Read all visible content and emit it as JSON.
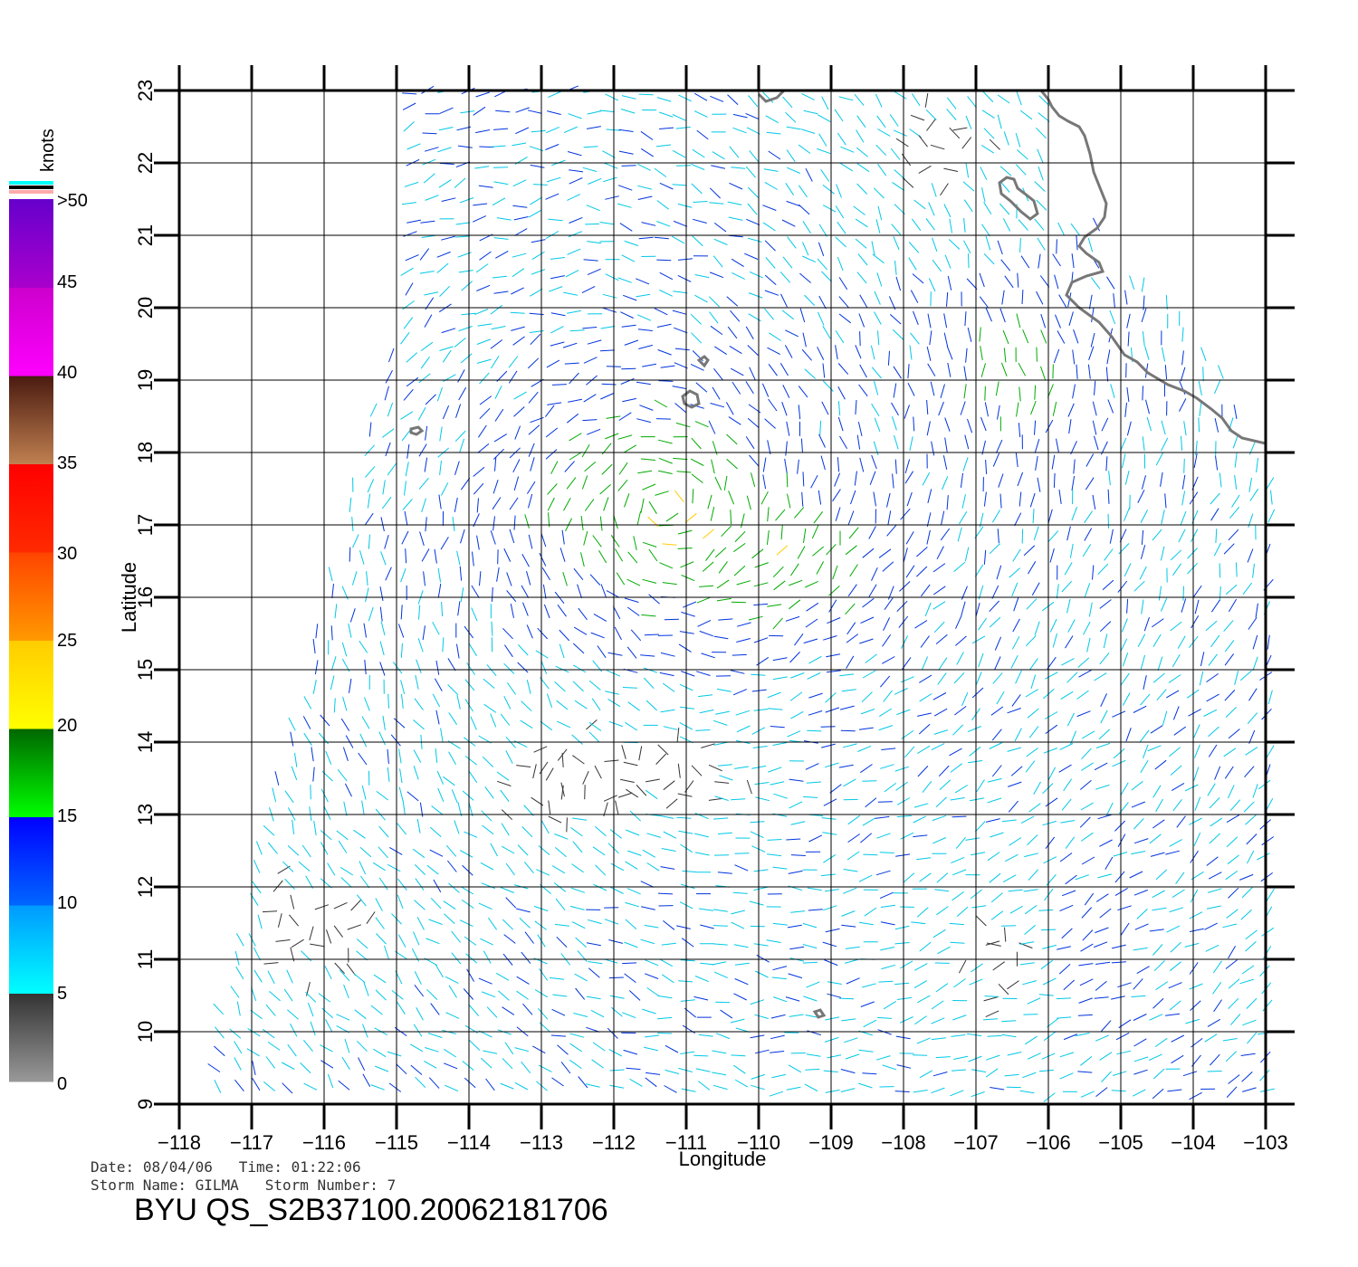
{
  "map": {
    "xlabel": "Longitude",
    "ylabel": "Latitude",
    "lon_ticks": [
      "−118",
      "−117",
      "−116",
      "−115",
      "−114",
      "−113",
      "−112",
      "−111",
      "−110",
      "−109",
      "−108",
      "−107",
      "−106",
      "−105",
      "−104",
      "−103"
    ],
    "lat_ticks": [
      "9",
      "10",
      "11",
      "12",
      "13",
      "14",
      "15",
      "16",
      "17",
      "18",
      "19",
      "20",
      "21",
      "22",
      "23"
    ],
    "lon_range": [
      -118,
      -103
    ],
    "lat_range": [
      9,
      23
    ],
    "grid": true
  },
  "legend": {
    "unit": "knots",
    "labels": [
      ">50",
      "45",
      "40",
      "35",
      "30",
      "25",
      "20",
      "15",
      "10",
      "5",
      "0"
    ],
    "bands": [
      {
        "from": 0,
        "to": 5,
        "top": "#333333",
        "bottom": "#999999"
      },
      {
        "from": 5,
        "to": 10,
        "top": "#0099ff",
        "bottom": "#00ffff"
      },
      {
        "from": 10,
        "to": 15,
        "top": "#0000ff",
        "bottom": "#0066ff"
      },
      {
        "from": 15,
        "to": 20,
        "top": "#006600",
        "bottom": "#00ff00"
      },
      {
        "from": 20,
        "to": 25,
        "top": "#ffcc00",
        "bottom": "#ffff00"
      },
      {
        "from": 25,
        "to": 30,
        "top": "#ff4400",
        "bottom": "#ff9900"
      },
      {
        "from": 30,
        "to": 35,
        "top": "#ff0000",
        "bottom": "#ff2a00"
      },
      {
        "from": 35,
        "to": 40,
        "top": "#4a1a10",
        "bottom": "#c08050"
      },
      {
        "from": 40,
        "to": 45,
        "top": "#cc00cc",
        "bottom": "#ff00ff"
      },
      {
        "from": 45,
        "to": 50,
        "top": "#6600cc",
        "bottom": "#aa00cc"
      }
    ],
    "cap_colors": [
      "#00ffff",
      "#000000",
      "#ffaaaa"
    ]
  },
  "colors": {
    "calm": "#333333",
    "light": "#00c8e6",
    "moderate": "#0033dd",
    "strong": "#00aa00",
    "gale": "#ffcc00",
    "storm": "#ff2200",
    "coast": "#777777"
  },
  "info": {
    "date_label": "Date:",
    "date": "08/04/06",
    "time_label": "Time:",
    "time": "01:22:06",
    "storm_name_label": "Storm Name:",
    "storm_name": "GILMA",
    "storm_number_label": "Storm Number:",
    "storm_number": "7"
  },
  "product_id": "BYU QS_S2B37100.20062181706"
}
